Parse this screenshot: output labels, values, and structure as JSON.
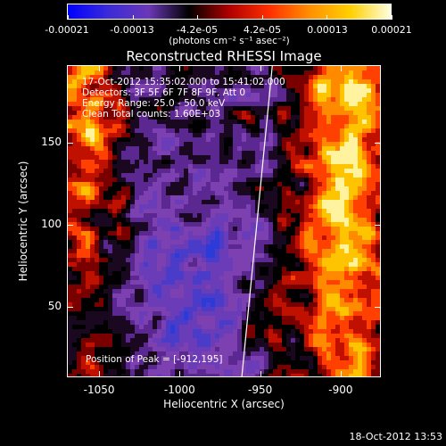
{
  "colorbar": {
    "tick_labels": [
      "-0.00021",
      "-0.00013",
      "-4.2e-05",
      "4.2e-05",
      "0.00013",
      "0.00021"
    ],
    "units_label": "(photons cm⁻² s⁻¹ asec⁻²)",
    "colors": [
      "#0000ff",
      "#3b2bd8",
      "#6a38b8",
      "#000000",
      "#b00000",
      "#ff3000",
      "#ff9000",
      "#ffd000",
      "#ffffe0"
    ]
  },
  "chart_data": {
    "type": "heatmap",
    "title": "Reconstructed RHESSI Image",
    "xlabel": "Heliocentric X (arcsec)",
    "ylabel": "Heliocentric Y (arcsec)",
    "xlim": [
      -1070,
      -875
    ],
    "ylim": [
      7,
      197
    ],
    "x_ticks": [
      "-1050",
      "-1000",
      "-950",
      "-900"
    ],
    "y_ticks": [
      "50",
      "100",
      "150"
    ],
    "x_tick_values": [
      -1050,
      -1000,
      -950,
      -900
    ],
    "y_tick_values": [
      50,
      100,
      150
    ],
    "limb_line": [
      [
        -962,
        7
      ],
      [
        -943,
        197
      ]
    ],
    "annotations": [
      "17-Oct-2012 15:35:02.000 to 15:41:02.000",
      "Detectors: 3F 5F 6F 7F 8F 9F, Att 0",
      "Energy Range: 25.0 - 50.0 keV",
      "Clean    Total counts: 1.60E+03"
    ],
    "peak_label": "Position of Peak = [-912,195]",
    "peak": [
      -912,
      195
    ]
  },
  "timestamp": "18-Oct-2012 13:53"
}
